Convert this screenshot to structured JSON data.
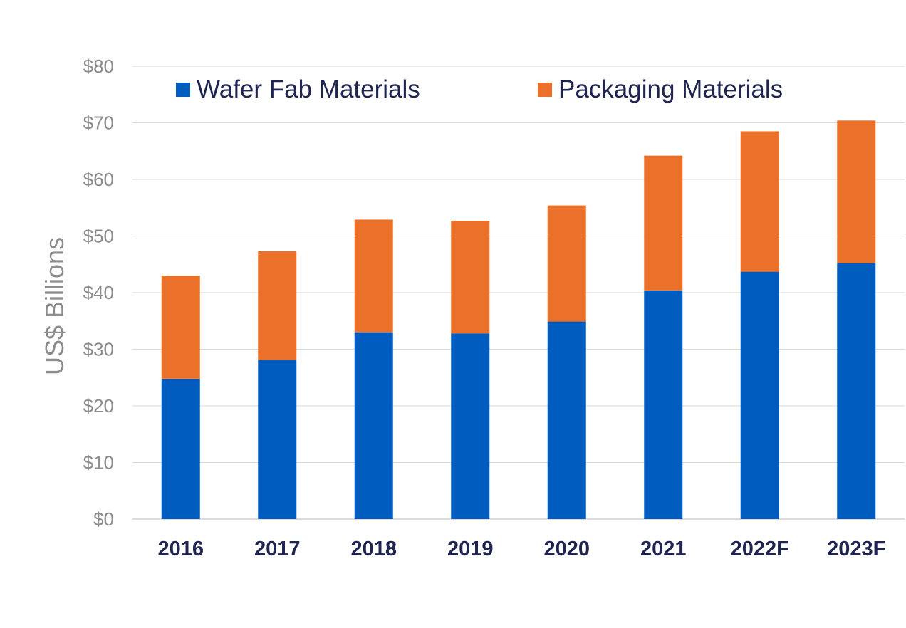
{
  "chart_data": {
    "type": "bar",
    "stacked": true,
    "title": "",
    "xlabel": "",
    "ylabel": "US$ Billions",
    "ylim": [
      0,
      80
    ],
    "yticks": [
      0,
      10,
      20,
      30,
      40,
      50,
      60,
      70,
      80
    ],
    "ytick_labels": [
      "$0",
      "$10",
      "$20",
      "$30",
      "$40",
      "$50",
      "$60",
      "$70",
      "$80"
    ],
    "grid": true,
    "legend_position": "top",
    "categories": [
      "2016",
      "2017",
      "2018",
      "2019",
      "2020",
      "2021",
      "2022F",
      "2023F"
    ],
    "series": [
      {
        "name": "Wafer Fab Materials",
        "color": "#005cbf",
        "values": [
          24.8,
          28.1,
          33.0,
          32.8,
          34.9,
          40.4,
          43.7,
          45.2
        ]
      },
      {
        "name": "Packaging Materials",
        "color": "#eb712b",
        "values": [
          18.2,
          19.2,
          19.9,
          19.9,
          20.5,
          23.8,
          24.8,
          25.2
        ]
      }
    ]
  }
}
